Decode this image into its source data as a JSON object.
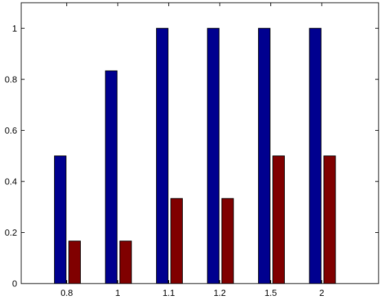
{
  "chart_data": {
    "type": "bar",
    "title": "",
    "xlabel": "",
    "ylabel": "",
    "categories": [
      "0.8",
      "1",
      "1.1",
      "1.2",
      "1.5",
      "2"
    ],
    "series": [
      {
        "values": [
          0.5,
          0.8333,
          1.0,
          1.0,
          1.0,
          1.0
        ],
        "color": "#00008f"
      },
      {
        "values": [
          0.1667,
          0.1667,
          0.3333,
          0.3333,
          0.5,
          0.5
        ],
        "color": "#800000"
      }
    ],
    "ylim": [
      0,
      1.1
    ],
    "yticks": [
      "0",
      "0.2",
      "0.4",
      "0.6",
      "0.8",
      "1"
    ],
    "grid": false,
    "legend": "none"
  }
}
